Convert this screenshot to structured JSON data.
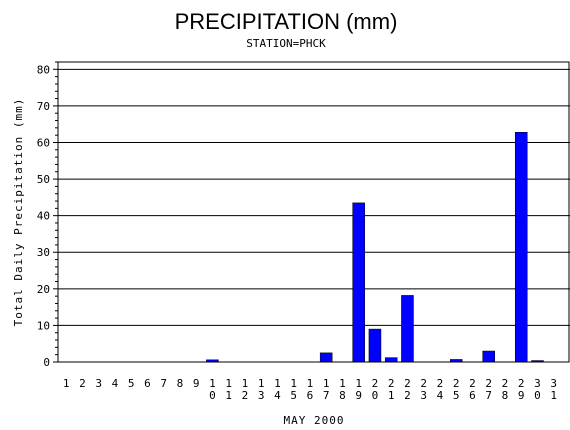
{
  "chart_data": {
    "type": "bar",
    "title": "PRECIPITATION (mm)",
    "subtitle": "STATION=PHCK",
    "xlabel": "MAY 2000",
    "ylabel": "Total Daily Precipitation (mm)",
    "ylim": [
      0,
      82
    ],
    "yticks": [
      0,
      10,
      20,
      30,
      40,
      50,
      60,
      70,
      80
    ],
    "grid": true,
    "bar_color": "#0000ff",
    "categories": [
      "1",
      "2",
      "3",
      "4",
      "5",
      "6",
      "7",
      "8",
      "9",
      "10",
      "11",
      "12",
      "13",
      "14",
      "15",
      "16",
      "17",
      "18",
      "19",
      "20",
      "21",
      "22",
      "23",
      "24",
      "25",
      "26",
      "27",
      "28",
      "29",
      "30",
      "31"
    ],
    "values": [
      0,
      0,
      0,
      0,
      0,
      0,
      0,
      0,
      0,
      0.6,
      0,
      0,
      0,
      0,
      0,
      0,
      2.5,
      0,
      43.5,
      9,
      1.2,
      18.2,
      0,
      0,
      0.7,
      0,
      3,
      0,
      62.8,
      0.4,
      0
    ]
  }
}
